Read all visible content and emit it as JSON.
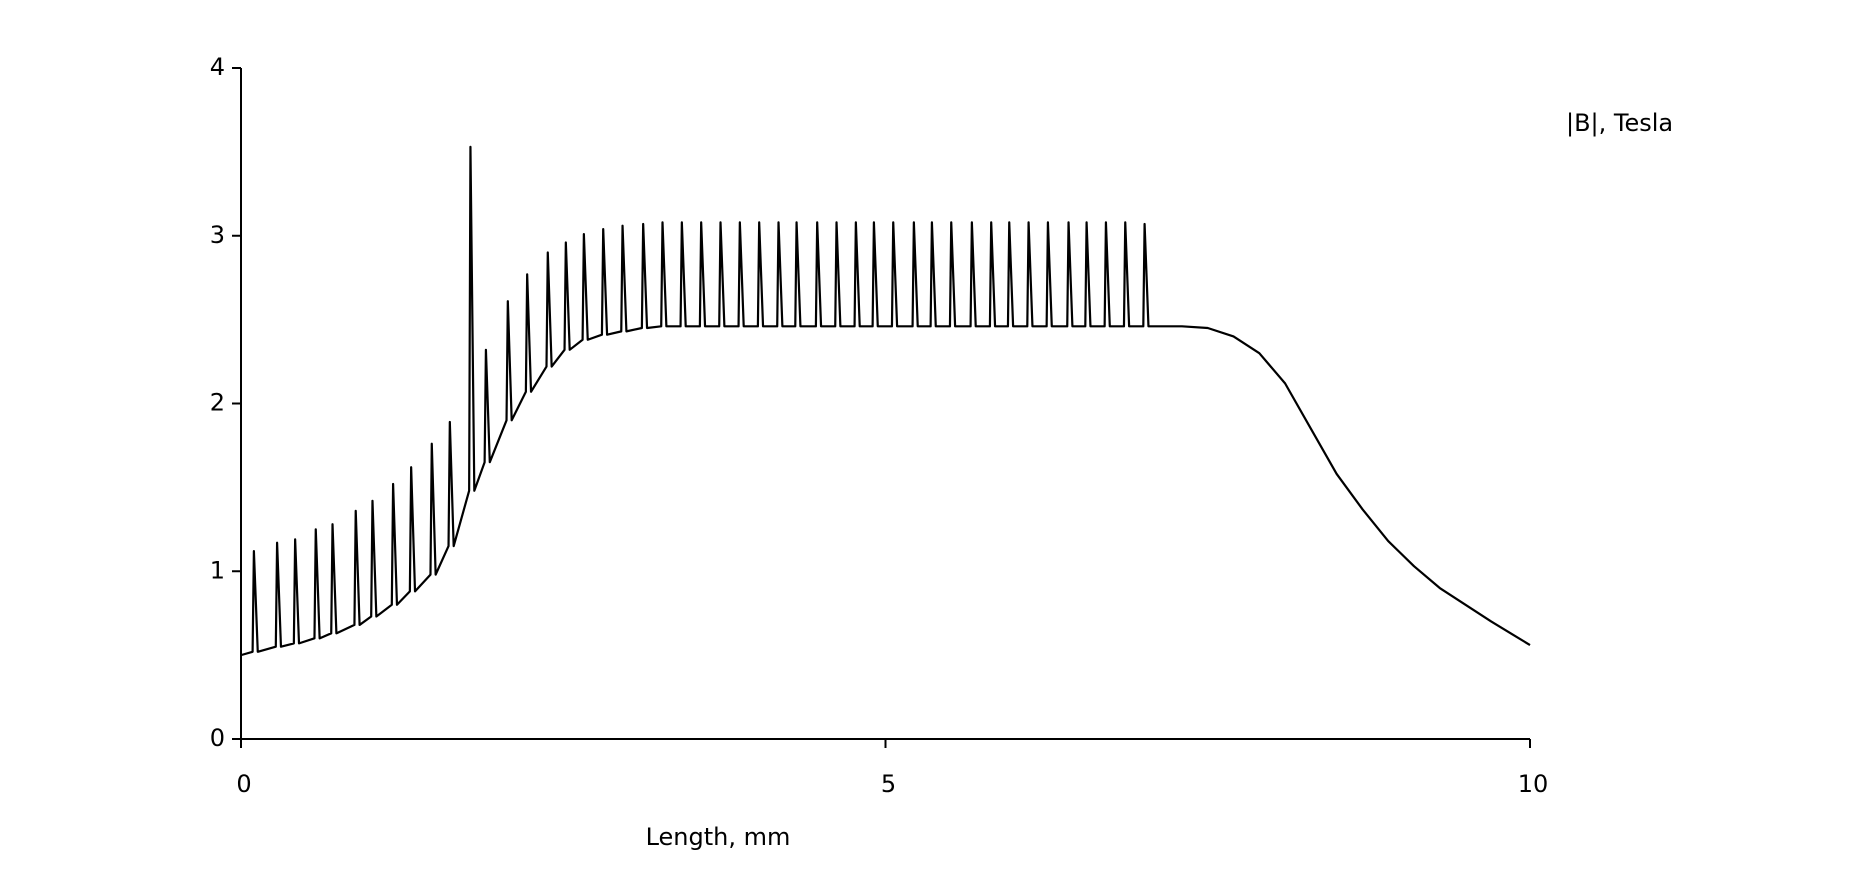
{
  "chart_data": {
    "type": "line",
    "title": "|B|, Tesla",
    "x_label": "Length, mm",
    "xlim": [
      0,
      10
    ],
    "xticks": [
      0,
      5,
      10
    ],
    "ylim": [
      0,
      4
    ],
    "yticks": [
      0,
      1,
      2,
      3,
      4
    ],
    "grid": false,
    "x": [
      0,
      0.09,
      0.1,
      0.13,
      0.27,
      0.28,
      0.31,
      0.41,
      0.42,
      0.45,
      0.57,
      0.58,
      0.61,
      0.7,
      0.71,
      0.74,
      0.88,
      0.89,
      0.92,
      1.01,
      1.02,
      1.05,
      1.17,
      1.18,
      1.21,
      1.31,
      1.32,
      1.35,
      1.47,
      1.48,
      1.51,
      1.61,
      1.62,
      1.65,
      1.77,
      1.78,
      1.81,
      1.89,
      1.9,
      1.93,
      2.06,
      2.07,
      2.1,
      2.21,
      2.22,
      2.25,
      2.37,
      2.38,
      2.41,
      2.51,
      2.52,
      2.55,
      2.65,
      2.66,
      2.69,
      2.8,
      2.81,
      2.84,
      2.95,
      2.96,
      2.99,
      3.11,
      3.12,
      3.15,
      3.26,
      3.27,
      3.3,
      3.41,
      3.42,
      3.45,
      3.56,
      3.57,
      3.6,
      3.71,
      3.72,
      3.75,
      3.86,
      3.87,
      3.9,
      4.01,
      4.02,
      4.05,
      4.16,
      4.17,
      4.2,
      4.3,
      4.31,
      4.34,
      4.46,
      4.47,
      4.5,
      4.61,
      4.62,
      4.65,
      4.76,
      4.77,
      4.8,
      4.9,
      4.91,
      4.94,
      5.05,
      5.06,
      5.09,
      5.21,
      5.22,
      5.25,
      5.35,
      5.36,
      5.39,
      5.5,
      5.51,
      5.54,
      5.66,
      5.67,
      5.7,
      5.81,
      5.82,
      5.85,
      5.95,
      5.96,
      5.99,
      6.1,
      6.11,
      6.14,
      6.25,
      6.26,
      6.29,
      6.41,
      6.42,
      6.45,
      6.55,
      6.56,
      6.59,
      6.7,
      6.71,
      6.74,
      6.85,
      6.86,
      6.89,
      7.0,
      7.01,
      7.04,
      7.3,
      7.5,
      7.7,
      7.9,
      8.1,
      8.3,
      8.5,
      8.7,
      8.9,
      9.1,
      9.3,
      9.5,
      9.7,
      10
    ],
    "series": [
      {
        "name": "|B|",
        "color": "#000000",
        "values": [
          0.5,
          0.52,
          1.12,
          0.52,
          0.55,
          1.17,
          0.55,
          0.57,
          1.19,
          0.57,
          0.6,
          1.25,
          0.6,
          0.63,
          1.28,
          0.63,
          0.68,
          1.36,
          0.68,
          0.73,
          1.42,
          0.73,
          0.8,
          1.52,
          0.8,
          0.88,
          1.62,
          0.88,
          0.98,
          1.76,
          0.98,
          1.15,
          1.89,
          1.15,
          1.48,
          3.53,
          1.48,
          1.65,
          2.32,
          1.65,
          1.9,
          2.61,
          1.9,
          2.07,
          2.77,
          2.07,
          2.22,
          2.9,
          2.22,
          2.32,
          2.96,
          2.32,
          2.38,
          3.01,
          2.38,
          2.41,
          3.04,
          2.41,
          2.43,
          3.06,
          2.43,
          2.45,
          3.07,
          2.45,
          2.46,
          3.08,
          2.46,
          2.46,
          3.08,
          2.46,
          2.46,
          3.08,
          2.46,
          2.46,
          3.08,
          2.46,
          2.46,
          3.08,
          2.46,
          2.46,
          3.08,
          2.46,
          2.46,
          3.08,
          2.46,
          2.46,
          3.08,
          2.46,
          2.46,
          3.08,
          2.46,
          2.46,
          3.08,
          2.46,
          2.46,
          3.08,
          2.46,
          2.46,
          3.08,
          2.46,
          2.46,
          3.08,
          2.46,
          2.46,
          3.08,
          2.46,
          2.46,
          3.08,
          2.46,
          2.46,
          3.08,
          2.46,
          2.46,
          3.08,
          2.46,
          2.46,
          3.08,
          2.46,
          2.46,
          3.08,
          2.46,
          2.46,
          3.08,
          2.46,
          2.46,
          3.08,
          2.46,
          2.46,
          3.08,
          2.46,
          2.46,
          3.08,
          2.46,
          2.46,
          3.08,
          2.46,
          2.46,
          3.08,
          2.46,
          2.46,
          3.07,
          2.46,
          2.46,
          2.45,
          2.4,
          2.3,
          2.12,
          1.85,
          1.58,
          1.37,
          1.18,
          1.03,
          0.9,
          0.8,
          0.7,
          0.56
        ]
      }
    ]
  }
}
